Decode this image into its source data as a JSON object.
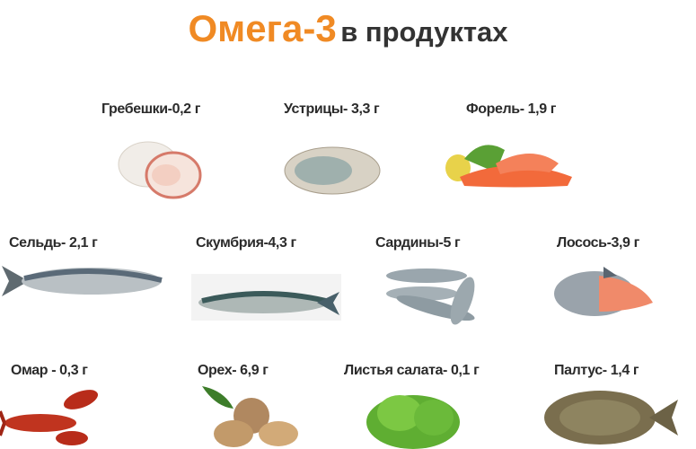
{
  "title": {
    "accent": "Омега-3",
    "rest": "в продуктах",
    "accent_color": "#f08a24"
  },
  "items": [
    {
      "label": "Гребешки-0,2 г",
      "icon": "scallop"
    },
    {
      "label": "Устрицы- 3,3 г",
      "icon": "oyster"
    },
    {
      "label": "Форель- 1,9 г",
      "icon": "trout-fillet"
    },
    {
      "label": "Сельдь- 2,1 г",
      "icon": "herring"
    },
    {
      "label": "Скумбрия-4,3 г",
      "icon": "mackerel"
    },
    {
      "label": "Сардины-5 г",
      "icon": "sardines"
    },
    {
      "label": "Лосось-3,9 г",
      "icon": "salmon"
    },
    {
      "label": "Омар - 0,3 г",
      "icon": "lobster"
    },
    {
      "label": "Орех- 6,9 г",
      "icon": "walnut"
    },
    {
      "label": "Листья салата- 0,1 г",
      "icon": "lettuce"
    },
    {
      "label": "Палтус- 1,4 г",
      "icon": "halibut"
    }
  ]
}
